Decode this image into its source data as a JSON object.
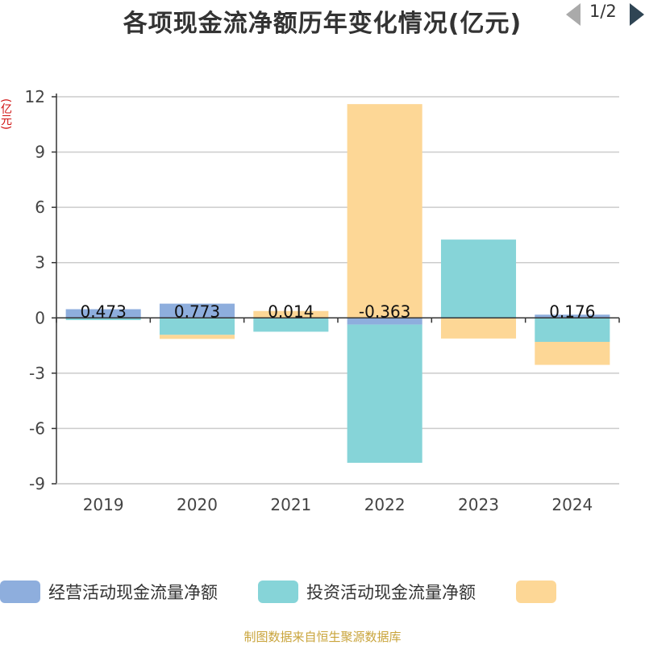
{
  "chart_data": {
    "type": "bar",
    "stacked": true,
    "title": "各项现金流净额历年变化情况(亿元)",
    "ylabel": "(亿元)",
    "categories": [
      "2019",
      "2020",
      "2021",
      "2022",
      "2023",
      "2024"
    ],
    "ylim": [
      -9,
      12
    ],
    "yticks": [
      12,
      9,
      6,
      3,
      0,
      -3,
      -6,
      -9
    ],
    "grid": true,
    "series": [
      {
        "name": "经营活动现金流量净额",
        "color": "#8eaedd",
        "values": [
          0.473,
          0.773,
          0.014,
          -0.363,
          -0.02,
          0.176
        ],
        "labels": [
          "0.473",
          "0.773",
          "0.014",
          "-0.363",
          "",
          "0.176"
        ]
      },
      {
        "name": "投资活动现金流量净额",
        "color": "#86d4d8",
        "values": [
          -0.12,
          -0.92,
          -0.75,
          -7.5,
          4.25,
          -1.3
        ]
      },
      {
        "name": "",
        "color": "#fdd796",
        "values": [
          0.0,
          -0.22,
          0.36,
          11.6,
          -1.1,
          -1.25
        ]
      }
    ]
  },
  "legend": {
    "page": "1/2"
  },
  "source": "制图数据来自恒生聚源数据库"
}
